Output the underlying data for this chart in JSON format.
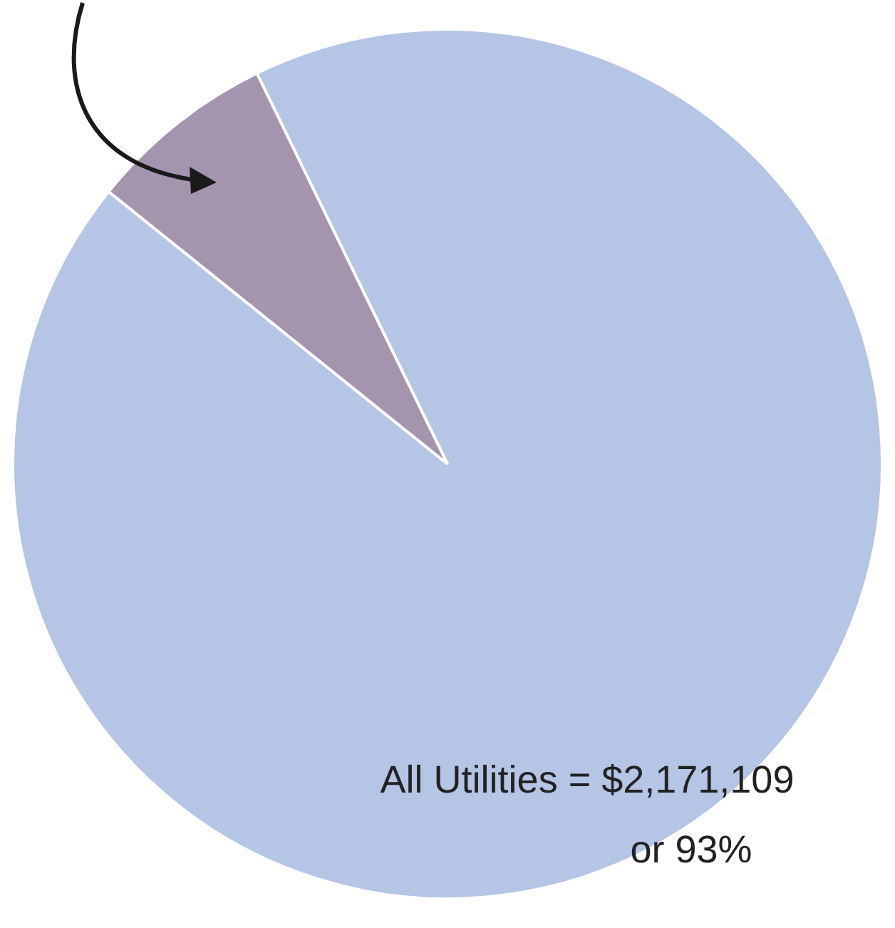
{
  "chart_data": {
    "type": "pie",
    "categories": [
      null,
      null
    ],
    "values": [
      93,
      7
    ],
    "colors": [
      "#b5c5e5",
      "#a594ae"
    ],
    "annotations": [
      "All Utilities = $2,171,109",
      "or 93%"
    ]
  }
}
